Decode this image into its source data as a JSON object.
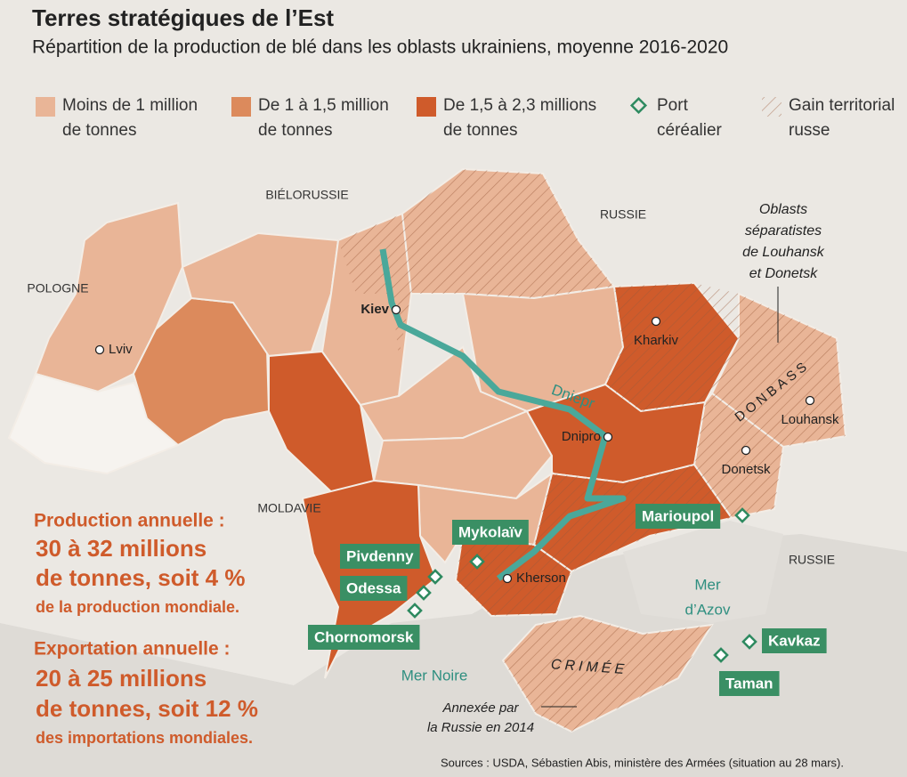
{
  "header": {
    "title": "Terres stratégiques de l’Est",
    "subtitle": "Répartition de la production de blé dans les oblasts ukrainiens, moyenne 2016-2020"
  },
  "legend": {
    "items": [
      {
        "lines": [
          "Moins de 1 million",
          "de tonnes"
        ],
        "color": "#e9b597"
      },
      {
        "lines": [
          "De 1 à 1,5 million",
          "de tonnes"
        ],
        "color": "#dc8a5c"
      },
      {
        "lines": [
          "De 1,5 à 2,3 millions",
          "de tonnes"
        ],
        "color": "#cf5b2b"
      },
      {
        "lines": [
          "Port",
          "céréalier"
        ]
      },
      {
        "lines": [
          "Gain territorial",
          "russe"
        ]
      }
    ]
  },
  "countries": [
    "BIÉLORUSSIE",
    "RUSSIE",
    "POLOGNE",
    "MOLDAVIE",
    "RUSSIE"
  ],
  "cities": [
    "Kiev",
    "Lviv",
    "Kharkiv",
    "Dnipro",
    "Louhansk",
    "Donetsk",
    "Kherson"
  ],
  "regions": {
    "river": "Dniepr",
    "donbass": "DONBASS",
    "crimea": "CRIMÉE",
    "black_sea": "Mer Noire",
    "azov": [
      "Mer",
      "d’Azov"
    ]
  },
  "ports": [
    "Mykolaïv",
    "Pivdenny",
    "Odessa",
    "Chornomorsk",
    "Marioupol",
    "Kavkaz",
    "Taman"
  ],
  "annotations": {
    "separatists": [
      "Oblasts",
      "séparatistes",
      "de Louhansk",
      "et Donetsk"
    ],
    "crimea": [
      "Annexée par",
      "la Russie en 2014"
    ]
  },
  "stats": {
    "production": [
      "Production annuelle :",
      "30 à 32 millions",
      "de tonnes, soit 4 %",
      "de la production mondiale."
    ],
    "export": [
      "Exportation annuelle :",
      "20 à 25 millions",
      "de tonnes, soit 12 %",
      "des importations mondiales."
    ]
  },
  "source": "Sources : USDA, Sébastien Abis, ministère des Armées (situation au 28 mars)."
}
